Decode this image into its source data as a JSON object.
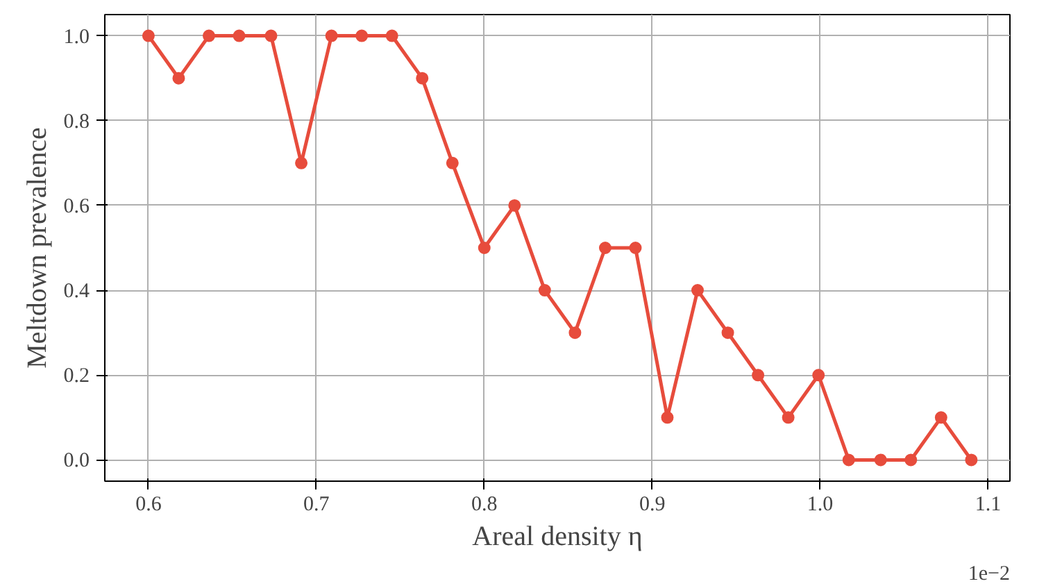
{
  "chart_data": {
    "type": "line",
    "xlabel": "Areal density η",
    "ylabel": "Meltdown prevalence",
    "x": [
      0.6,
      0.618,
      0.636,
      0.654,
      0.673,
      0.691,
      0.709,
      0.727,
      0.745,
      0.763,
      0.781,
      0.8,
      0.818,
      0.836,
      0.854,
      0.872,
      0.89,
      0.909,
      0.927,
      0.945,
      0.963,
      0.981,
      0.999,
      1.017,
      1.036,
      1.054,
      1.072,
      1.09
    ],
    "series": [
      {
        "color": "#e74c3c",
        "values": [
          1.0,
          0.9,
          1.0,
          1.0,
          1.0,
          0.7,
          1.0,
          1.0,
          1.0,
          0.9,
          0.7,
          0.5,
          0.6,
          0.4,
          0.3,
          0.5,
          0.5,
          0.1,
          0.4,
          0.3,
          0.2,
          0.1,
          0.2,
          0.0,
          0.0,
          0.0,
          0.1,
          0.0
        ]
      }
    ],
    "xlim": [
      0.574,
      1.113
    ],
    "ylim": [
      -0.05,
      1.05
    ],
    "xticks": [
      0.6,
      0.7,
      0.8,
      0.9,
      {
        "value": 1,
        "label": "1.0"
      },
      1.1
    ],
    "yticks": [
      {
        "value": 0,
        "label": "0.0"
      },
      0.2,
      0.4,
      0.6,
      0.8,
      {
        "value": 1,
        "label": "1.0"
      }
    ],
    "annotations": [
      "1e−2"
    ],
    "grid": true,
    "marker": "circle",
    "line_style": "solid"
  }
}
